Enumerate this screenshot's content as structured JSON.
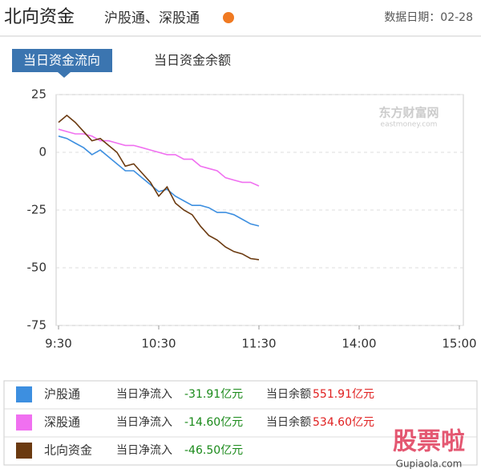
{
  "header": {
    "title": "北向资金",
    "subtitle": "沪股通、深股通",
    "date_label": "数据日期：02-28"
  },
  "tabs": [
    "当日资金流向",
    "当日资金余额"
  ],
  "watermarks": {
    "chart": "东方财富网",
    "chart_sub": "eastmoney.com",
    "site": "股票啦",
    "site_sub": "Gupiaola.com"
  },
  "chart_data": {
    "type": "line",
    "x": [
      0,
      5,
      10,
      15,
      20,
      25,
      30,
      35,
      40,
      45,
      50,
      55,
      60,
      65,
      70,
      75,
      80,
      85,
      90,
      95,
      100,
      105,
      110,
      115,
      120
    ],
    "xlim": [
      0,
      240
    ],
    "xticks": [
      {
        "value": 0,
        "label": "9:30"
      },
      {
        "value": 60,
        "label": "10:30"
      },
      {
        "value": 120,
        "label": "11:30"
      },
      {
        "value": 180,
        "label": "14:00"
      },
      {
        "value": 240,
        "label": "15:00"
      }
    ],
    "ylim": [
      -75,
      25
    ],
    "yticks": [
      25,
      0,
      -25,
      -50,
      -75
    ],
    "grid": true,
    "series": [
      {
        "name": "沪股通",
        "color": "#3d8fe0",
        "values": [
          7,
          6,
          4,
          2,
          -1,
          1,
          -2,
          -5,
          -8,
          -8,
          -11,
          -14,
          -17,
          -16,
          -19,
          -21,
          -23,
          -23,
          -24,
          -26,
          -26,
          -27,
          -29,
          -31,
          -31.91
        ]
      },
      {
        "name": "深股通",
        "color": "#f070f0",
        "values": [
          10,
          9,
          8,
          8,
          7,
          5,
          5,
          4,
          3,
          3,
          2,
          1,
          0,
          -1,
          -1,
          -3,
          -3,
          -6,
          -7,
          -8,
          -11,
          -12,
          -13,
          -13,
          -14.6
        ]
      },
      {
        "name": "北向资金",
        "color": "#6b3a10",
        "values": [
          13,
          16,
          13,
          9,
          5,
          6,
          3,
          0,
          -6,
          -5,
          -9,
          -13,
          -19,
          -15,
          -22,
          -25,
          -27,
          -32,
          -36,
          -38,
          -41,
          -43,
          -44,
          -46,
          -46.5
        ]
      }
    ]
  },
  "summary": [
    {
      "inflow_label": "当日净流入",
      "inflow": "-31.91亿元",
      "balance_label": "当日余额",
      "balance": "551.91亿元"
    },
    {
      "inflow_label": "当日净流入",
      "inflow": "-14.60亿元",
      "balance_label": "当日余额",
      "balance": "534.60亿元"
    },
    {
      "inflow_label": "当日净流入",
      "inflow": "-46.50亿元"
    }
  ]
}
